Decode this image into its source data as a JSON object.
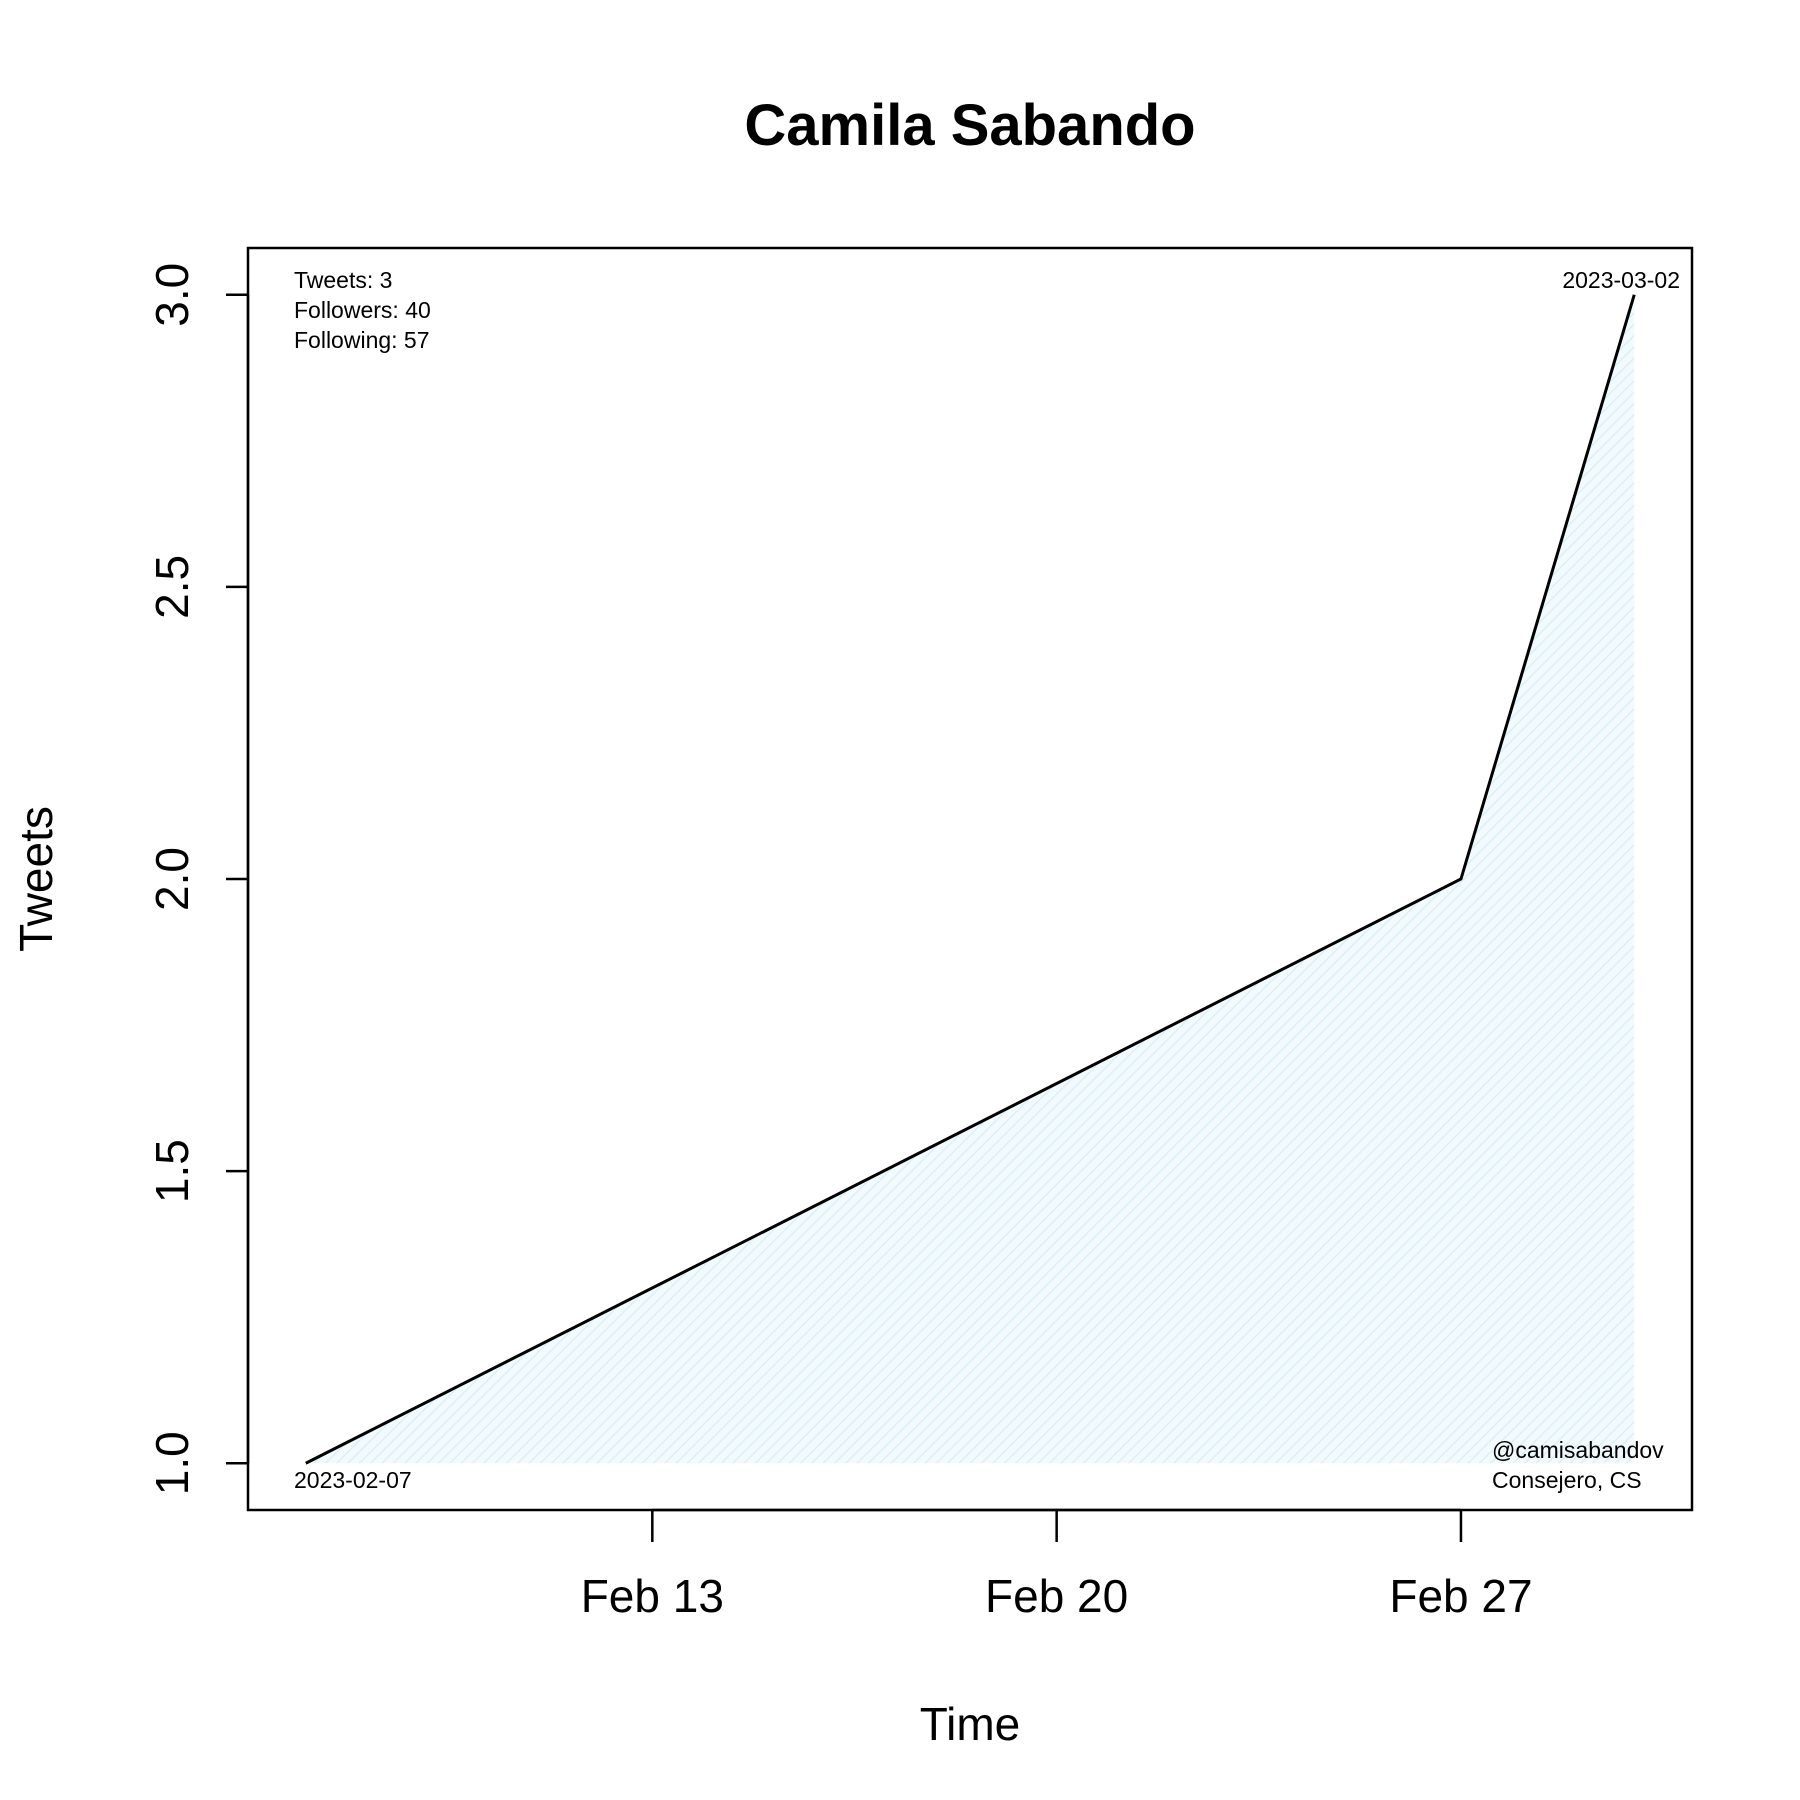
{
  "chart_data": {
    "type": "area",
    "title": "Camila Sabando",
    "xlabel": "Time",
    "ylabel": "Tweets",
    "x_type": "date",
    "xlim": [
      "2023-02-06",
      "2023-03-03"
    ],
    "ylim": [
      0.92,
      3.08
    ],
    "x_ticks": [
      {
        "date": "2023-02-13",
        "label": "Feb 13"
      },
      {
        "date": "2023-02-20",
        "label": "Feb 20"
      },
      {
        "date": "2023-02-27",
        "label": "Feb 27"
      }
    ],
    "y_ticks": [
      {
        "value": 1.0,
        "label": "1.0"
      },
      {
        "value": 1.5,
        "label": "1.5"
      },
      {
        "value": 2.0,
        "label": "2.0"
      },
      {
        "value": 2.5,
        "label": "2.5"
      },
      {
        "value": 3.0,
        "label": "3.0"
      }
    ],
    "series": [
      {
        "x": [
          "2023-02-07",
          "2023-02-27",
          "2023-03-02"
        ],
        "y": [
          1,
          2,
          3
        ]
      }
    ],
    "grid": false,
    "fill_color": "#eaf6fb",
    "line_color": "#000000",
    "annotations": {
      "stats": [
        "Tweets: 3",
        "Followers: 40",
        "Following: 57"
      ],
      "start_date": "2023-02-07",
      "end_date": "2023-03-02",
      "handle": "@camisabandov",
      "role": "Consejero, CS"
    }
  }
}
